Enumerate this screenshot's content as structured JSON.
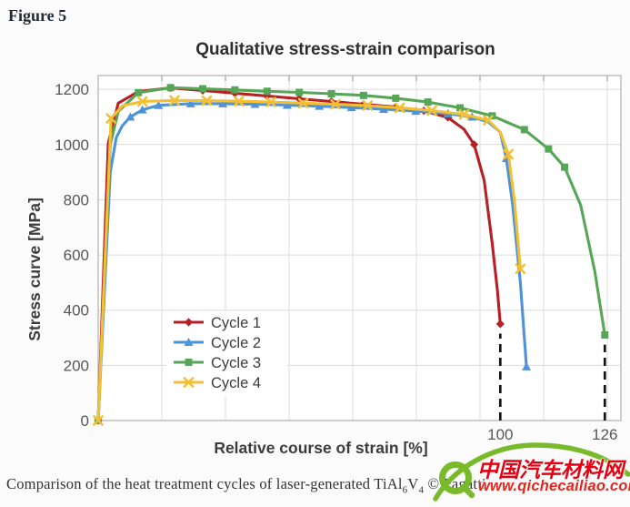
{
  "figure_label": "Figure 5",
  "caption": {
    "part1": "Comparison of the heat treatment cycles of laser-generated TiAl",
    "sub1": "6",
    "part2": "V",
    "sub2": "4",
    "part3": " © Pagatti"
  },
  "watermark": {
    "site_name": "中国汽车材料网",
    "site_url": "www.qichecailiao.com",
    "logo_color": "#78ba29",
    "text_color": "#e60012"
  },
  "chart_data": {
    "type": "line",
    "title": "Qualitative stress-strain comparison",
    "xlabel": "Relative course of strain [%]",
    "ylabel": "Stress curve [MPa]",
    "xlim": [
      0,
      130
    ],
    "ylim": [
      0,
      1250
    ],
    "y_ticks": [
      0,
      200,
      400,
      600,
      800,
      1000,
      1200
    ],
    "x_tick_labels": [
      {
        "value": 100,
        "label": "100"
      },
      {
        "value": 126,
        "label": "126"
      }
    ],
    "grid": true,
    "legend_position": "inside lower-left",
    "annotations": [
      {
        "type": "dashed-vline",
        "x": 100,
        "y_from": 0,
        "y_to": 315
      },
      {
        "type": "dashed-vline",
        "x": 126,
        "y_from": 0,
        "y_to": 275
      }
    ],
    "series": [
      {
        "name": "Cycle 1",
        "color": "#b81f24",
        "marker": "diamond",
        "points": [
          [
            0,
            0,
            1
          ],
          [
            2.5,
            1005,
            0
          ],
          [
            5,
            1150,
            0
          ],
          [
            10,
            1192,
            0
          ],
          [
            18,
            1205,
            1
          ],
          [
            26,
            1196,
            1
          ],
          [
            34,
            1186,
            1
          ],
          [
            42,
            1176,
            1
          ],
          [
            50,
            1166,
            1
          ],
          [
            58,
            1156,
            1
          ],
          [
            66,
            1146,
            1
          ],
          [
            74,
            1136,
            1
          ],
          [
            81,
            1122,
            1
          ],
          [
            87,
            1098,
            1
          ],
          [
            91,
            1055,
            0
          ],
          [
            93.5,
            1000,
            1
          ],
          [
            96,
            870,
            0
          ],
          [
            98,
            640,
            0
          ],
          [
            99.3,
            470,
            0
          ],
          [
            100,
            350,
            1
          ]
        ]
      },
      {
        "name": "Cycle 2",
        "color": "#4d93d9",
        "marker": "triangle",
        "points": [
          [
            0,
            0,
            1
          ],
          [
            3,
            900,
            0
          ],
          [
            4.5,
            1025,
            0
          ],
          [
            6,
            1068,
            0
          ],
          [
            8,
            1100,
            1
          ],
          [
            11,
            1126,
            1
          ],
          [
            15,
            1142,
            1
          ],
          [
            23,
            1148,
            1
          ],
          [
            31,
            1148,
            1
          ],
          [
            39,
            1146,
            1
          ],
          [
            47,
            1143,
            1
          ],
          [
            55,
            1139,
            1
          ],
          [
            63,
            1134,
            1
          ],
          [
            71,
            1128,
            1
          ],
          [
            79,
            1121,
            1
          ],
          [
            87,
            1112,
            1
          ],
          [
            93,
            1100,
            1
          ],
          [
            97,
            1082,
            0
          ],
          [
            100,
            1045,
            0
          ],
          [
            101.5,
            950,
            1
          ],
          [
            103,
            790,
            0
          ],
          [
            105,
            500,
            0
          ],
          [
            106.5,
            195,
            1
          ]
        ]
      },
      {
        "name": "Cycle 3",
        "color": "#57a657",
        "marker": "square",
        "points": [
          [
            0,
            0,
            1
          ],
          [
            3,
            1000,
            0
          ],
          [
            5,
            1120,
            0
          ],
          [
            10,
            1188,
            1
          ],
          [
            18,
            1206,
            1
          ],
          [
            26,
            1202,
            1
          ],
          [
            34,
            1198,
            1
          ],
          [
            42,
            1193,
            1
          ],
          [
            50,
            1189,
            1
          ],
          [
            58,
            1184,
            1
          ],
          [
            66,
            1178,
            1
          ],
          [
            74,
            1168,
            1
          ],
          [
            82,
            1154,
            1
          ],
          [
            90,
            1133,
            1
          ],
          [
            98,
            1104,
            1
          ],
          [
            106,
            1054,
            1
          ],
          [
            112,
            984,
            1
          ],
          [
            116,
            918,
            1
          ],
          [
            120,
            780,
            0
          ],
          [
            123.5,
            540,
            0
          ],
          [
            126,
            310,
            1
          ]
        ]
      },
      {
        "name": "Cycle 4",
        "color": "#f3bf33",
        "marker": "x",
        "points": [
          [
            0,
            0,
            1
          ],
          [
            3.2,
            1095,
            1
          ],
          [
            6,
            1140,
            0
          ],
          [
            11,
            1156,
            1
          ],
          [
            19,
            1160,
            1
          ],
          [
            27,
            1159,
            1
          ],
          [
            35,
            1157,
            1
          ],
          [
            43,
            1154,
            1
          ],
          [
            51,
            1150,
            1
          ],
          [
            59,
            1146,
            1
          ],
          [
            67,
            1141,
            1
          ],
          [
            75,
            1133,
            1
          ],
          [
            83,
            1123,
            1
          ],
          [
            91,
            1109,
            1
          ],
          [
            97,
            1088,
            1
          ],
          [
            100,
            1045,
            0
          ],
          [
            102,
            965,
            1
          ],
          [
            103.5,
            800,
            0
          ],
          [
            105,
            550,
            1
          ]
        ]
      }
    ]
  }
}
